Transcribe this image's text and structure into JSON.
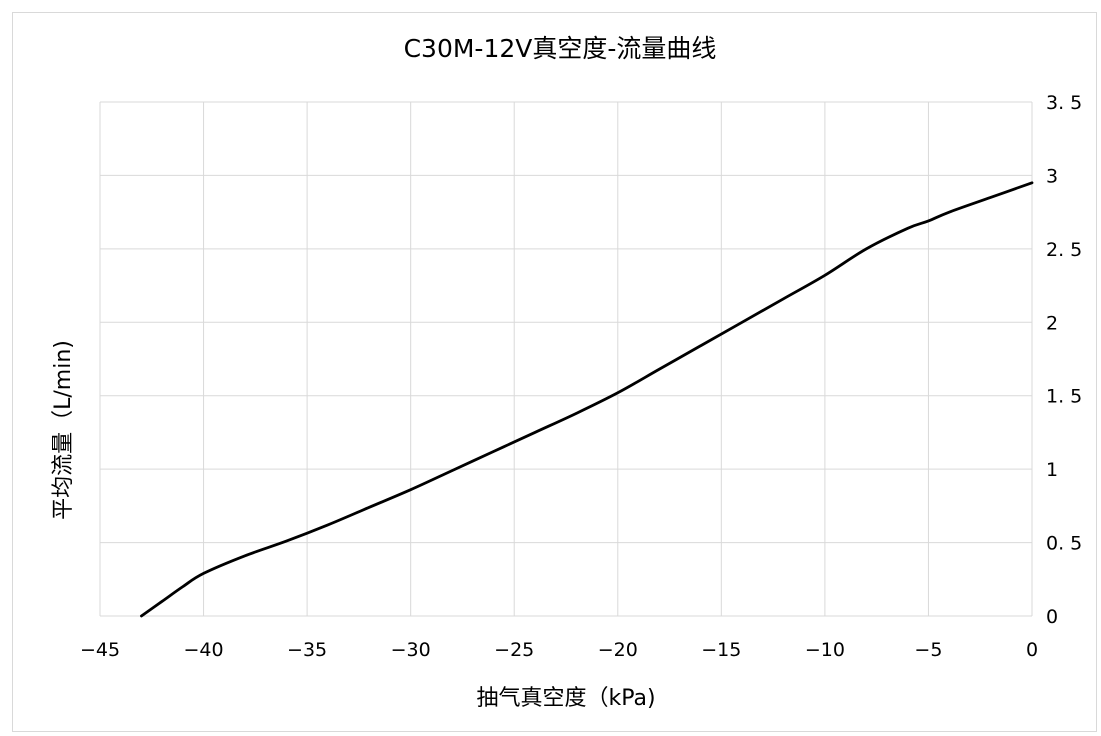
{
  "chart_data": {
    "type": "line",
    "title": "C30M-12V真空度-流量曲线",
    "xlabel": "抽气真空度（kPa)",
    "ylabel": "平均流量（L/min)",
    "xlim": [
      -45,
      0
    ],
    "ylim": [
      0,
      3.5
    ],
    "x_ticks": [
      -45,
      -40,
      -35,
      -30,
      -25,
      -20,
      -15,
      -10,
      -5,
      0
    ],
    "x_tick_labels": [
      "−45",
      "−40",
      "−35",
      "−30",
      "−25",
      "−20",
      "−15",
      "−10",
      "−5",
      "0"
    ],
    "y_ticks": [
      0,
      0.5,
      1,
      1.5,
      2,
      2.5,
      3,
      3.5
    ],
    "y_tick_labels": [
      "0",
      "0. 5",
      "1",
      "1. 5",
      "2",
      "2. 5",
      "3",
      "3. 5"
    ],
    "y_axis_position": "right",
    "grid": true,
    "legend": "none",
    "series": [
      {
        "color": "#000000",
        "x": [
          -43,
          -42,
          -41,
          -40,
          -38,
          -36,
          -34,
          -32,
          -30,
          -28,
          -26,
          -24,
          -22,
          -20,
          -18,
          -16,
          -14,
          -12,
          -10,
          -8,
          -6,
          -5,
          -4,
          -2,
          0
        ],
        "y": [
          0,
          0.1,
          0.2,
          0.29,
          0.41,
          0.51,
          0.62,
          0.74,
          0.86,
          0.99,
          1.12,
          1.25,
          1.38,
          1.52,
          1.68,
          1.84,
          2.0,
          2.16,
          2.32,
          2.5,
          2.64,
          2.69,
          2.75,
          2.85,
          2.95
        ]
      }
    ]
  }
}
